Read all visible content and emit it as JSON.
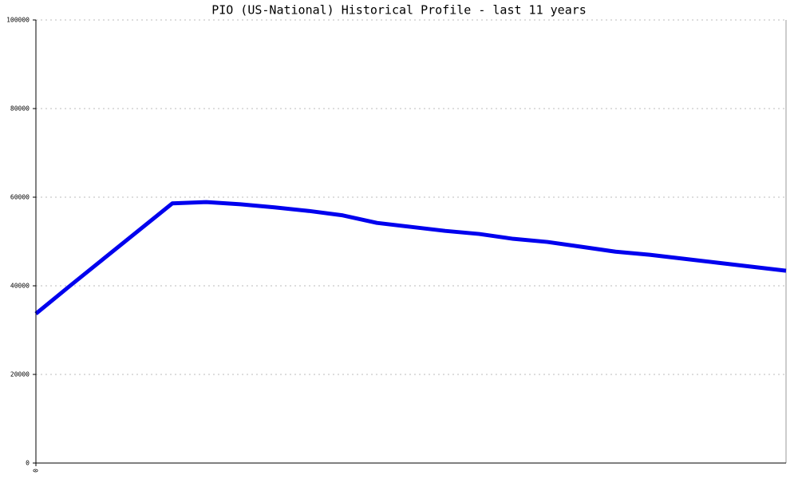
{
  "chart_data": {
    "type": "line",
    "title": "PIO (US-National) Historical Profile - last 11 years",
    "x": [
      0,
      1,
      2,
      3,
      4,
      5,
      6,
      7,
      8,
      9,
      10,
      11,
      12,
      13,
      14,
      15,
      16,
      17,
      18,
      19,
      20,
      21,
      22
    ],
    "series": [
      {
        "color": "#0000ee",
        "values": [
          33700,
          40000,
          46200,
          52400,
          58600,
          58900,
          58400,
          57700,
          56900,
          55900,
          54200,
          53300,
          52400,
          51700,
          50600,
          49900,
          48800,
          47700,
          47000,
          46100,
          45200,
          44300,
          43400
        ]
      }
    ],
    "xlim": [
      0,
      22
    ],
    "xticks": [
      0
    ],
    "ylim": [
      0,
      100000
    ],
    "yticks": [
      0,
      20000,
      40000,
      60000,
      80000,
      100000
    ],
    "grid": true
  }
}
